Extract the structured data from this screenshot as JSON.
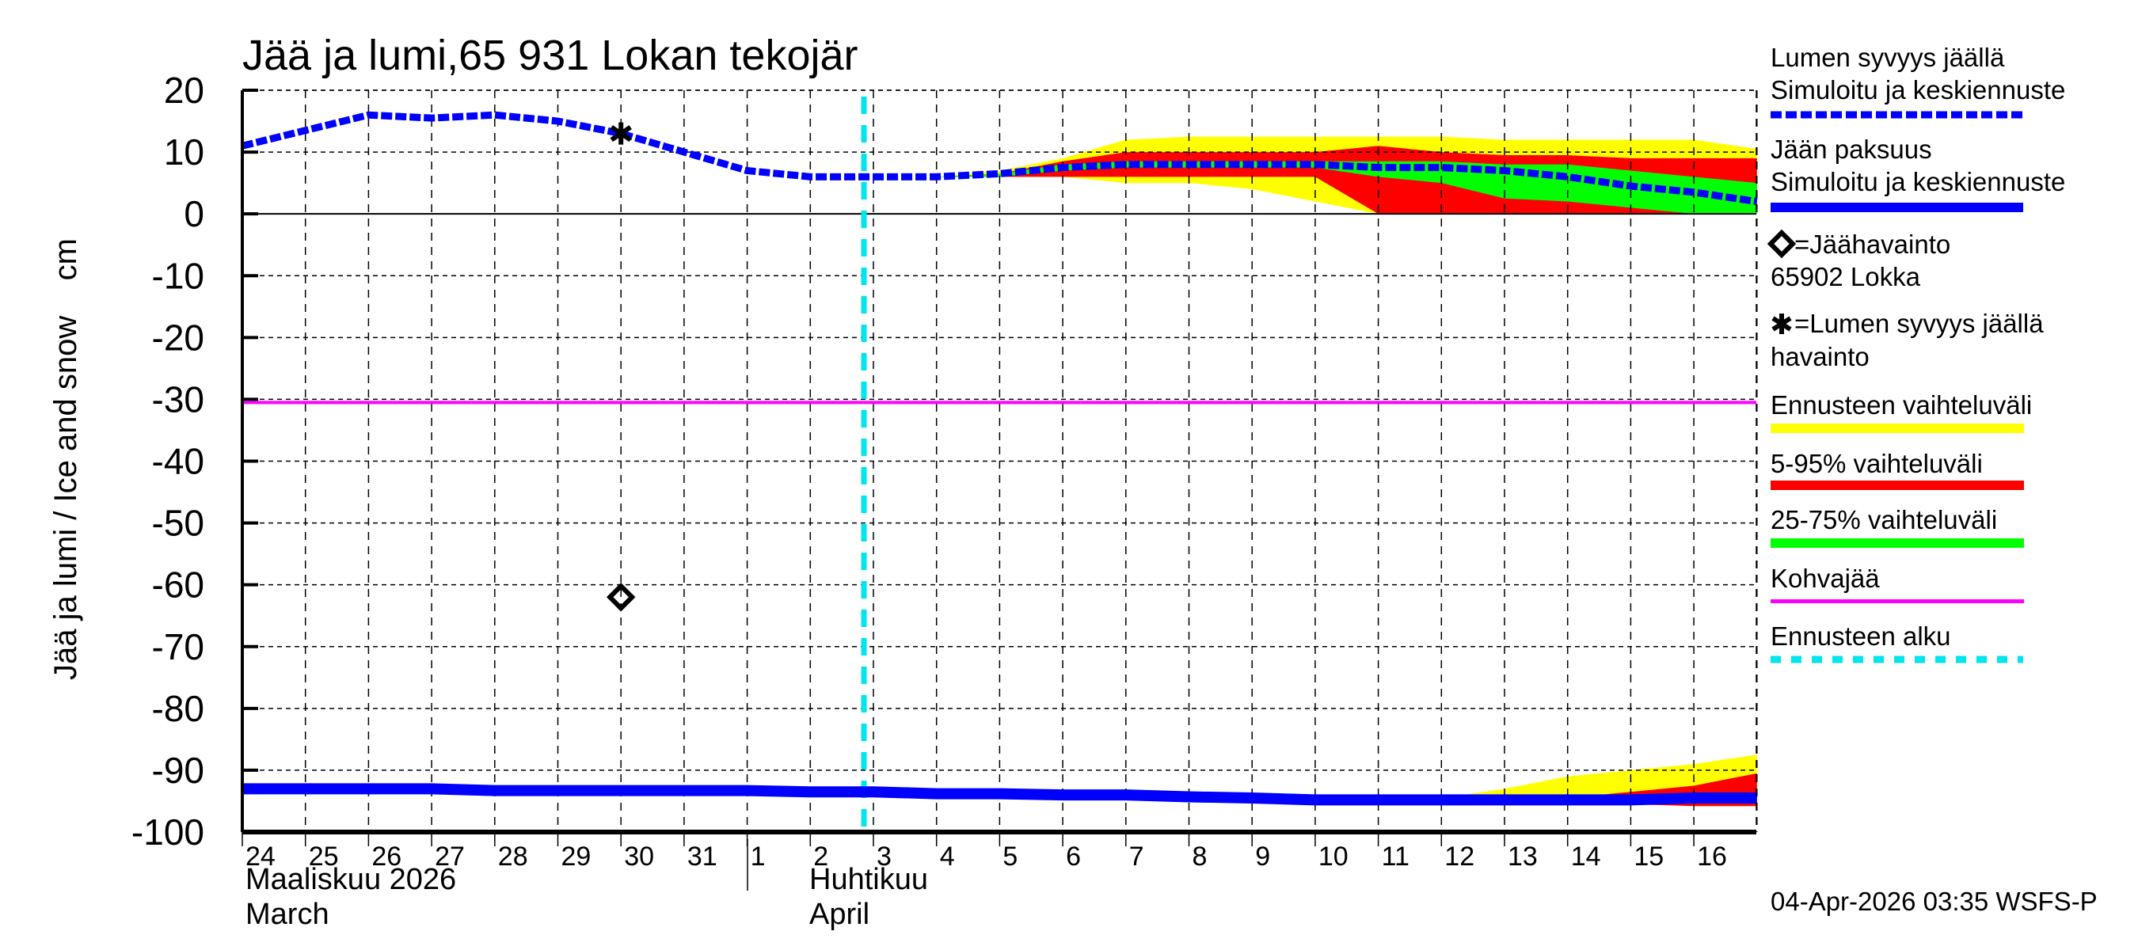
{
  "chart_data": {
    "type": "line",
    "title": "Jää ja lumi,65 931 Lokan tekojär",
    "ylabel": "Jää ja lumi / Ice and snow    cm",
    "xlabel": "",
    "ylim": [
      -100,
      20
    ],
    "yticks": [
      "20",
      "10",
      "0",
      "-10",
      "-20",
      "-30",
      "-40",
      "-50",
      "-60",
      "-70",
      "-80",
      "-90",
      "-100"
    ],
    "x_ticks": [
      "24",
      "25",
      "26",
      "27",
      "28",
      "29",
      "30",
      "31",
      "1",
      "2",
      "3",
      "4",
      "5",
      "6",
      "7",
      "8",
      "9",
      "10",
      "11",
      "12",
      "13",
      "14",
      "15",
      "16"
    ],
    "months": [
      {
        "fi": "Maaliskuu 2026",
        "en": "March"
      },
      {
        "fi": "Huhtikuu",
        "en": "April"
      }
    ],
    "grid": true,
    "legend_position": "right",
    "x_dates": [
      "03-24",
      "03-25",
      "03-26",
      "03-27",
      "03-28",
      "03-29",
      "03-30",
      "03-31",
      "04-01",
      "04-02",
      "04-03",
      "04-04",
      "04-05",
      "04-06",
      "04-07",
      "04-08",
      "04-09",
      "04-10",
      "04-11",
      "04-12",
      "04-13",
      "04-14",
      "04-15",
      "04-16",
      "04-17"
    ],
    "series": [
      {
        "name": "Lumen syvyys jäällä Simuloitu ja keskiennuste",
        "style": "dashed",
        "color": "#0000ff",
        "values": [
          11,
          13.5,
          16,
          15.5,
          16,
          15,
          13,
          10,
          7,
          6,
          6,
          6,
          6.5,
          7.5,
          8,
          8,
          8,
          8,
          7.5,
          7.5,
          7,
          6,
          4.5,
          3.5,
          2
        ]
      },
      {
        "name": "Jään paksuus Simuloitu ja keskiennuste",
        "style": "solid",
        "color": "#0000ff",
        "values": [
          -93,
          -93,
          -93,
          -93,
          -93.3,
          -93.3,
          -93.3,
          -93.3,
          -93.3,
          -93.5,
          -93.5,
          -93.8,
          -93.8,
          -94,
          -94,
          -94.3,
          -94.5,
          -94.8,
          -94.8,
          -94.8,
          -94.8,
          -94.8,
          -94.8,
          -94.5,
          -94.5
        ]
      },
      {
        "name": "Kohvajää",
        "style": "solid",
        "color": "#ff00ff",
        "values": [
          -30.5,
          -30.5
        ]
      }
    ],
    "bands": {
      "snow": {
        "ennusteen_vaihteluvali": {
          "x_start": "04-04",
          "lower": [
            6,
            6,
            6,
            5,
            5,
            4,
            2,
            0,
            0,
            0,
            0,
            0,
            0,
            0
          ],
          "upper": [
            6,
            7,
            9,
            12,
            12.5,
            12.5,
            12.5,
            12.5,
            12.5,
            12,
            12,
            12,
            12,
            10.5
          ]
        },
        "p5_95": {
          "x_start": "04-04",
          "lower": [
            6,
            6,
            6,
            6,
            6,
            6,
            6,
            0,
            0,
            0,
            0,
            0,
            0,
            0
          ],
          "upper": [
            6,
            6.5,
            8.5,
            10,
            10,
            10,
            10,
            11,
            10,
            9.5,
            9.5,
            9,
            9,
            9
          ]
        },
        "p25_75": {
          "x_start": "04-04",
          "lower": [
            6,
            6,
            7,
            7.5,
            7.5,
            7.5,
            7.5,
            6,
            5,
            2.5,
            2,
            1,
            0,
            0
          ],
          "upper": [
            6,
            6.5,
            8,
            8.5,
            8.5,
            8.5,
            8.5,
            8.5,
            8.5,
            8,
            8,
            7,
            6,
            5
          ]
        }
      },
      "ice": {
        "ennusteen_vaihteluvali": {
          "x_start": "04-12",
          "lower": [
            -94.8,
            -95,
            -95.2,
            -95.5,
            -95.5,
            -95.8
          ],
          "upper": [
            -94.5,
            -93,
            -91,
            -90,
            -89,
            -87.5
          ]
        },
        "p5_95": {
          "x_start": "04-13",
          "lower": [
            -95,
            -95,
            -95.5,
            -95.8,
            -95.8
          ],
          "upper": [
            -94.5,
            -94.5,
            -93.5,
            -92.5,
            -90.5
          ]
        }
      }
    },
    "observations": [
      {
        "name": "Jäähavainto 65902 Lokka",
        "marker": "diamond",
        "x": "03-30",
        "y": -62
      },
      {
        "name": "Lumen syvyys jäällä havainto",
        "marker": "asterisk",
        "x": "03-30",
        "y": 13
      }
    ],
    "forecast_start": "04-02 ~21:00"
  },
  "chart": {
    "title": "Jää ja lumi,65 931 Lokan tekojär",
    "ylabel": "Jää ja lumi / Ice and snow    cm",
    "month1_fi": "Maaliskuu 2026",
    "month1_en": "March",
    "month2_fi": "Huhtikuu",
    "month2_en": "April"
  },
  "legend": {
    "snow_line1": "Lumen syvyys jäällä",
    "snow_line2": "Simuloitu ja keskiennuste",
    "ice_line1": "Jään paksuus",
    "ice_line2": "Simuloitu ja keskiennuste",
    "ice_obs_line1": "=Jäähavainto",
    "ice_obs_line2": "65902 Lokka",
    "snow_obs_line1": "=Lumen syvyys jäällä",
    "snow_obs_line2": "havainto",
    "range_all": "Ennusteen vaihteluväli",
    "range_5_95": "5-95% vaihteluväli",
    "range_25_75": "25-75% vaihteluväli",
    "kohvajaa": "Kohvajää",
    "forecast_start": "Ennusteen alku"
  },
  "colors": {
    "snow_line": "#0000ff",
    "ice_line": "#0000ff",
    "range_all": "#ffff00",
    "range_5_95": "#ff0000",
    "range_25_75": "#00ff00",
    "kohvajaa": "#ff00ff",
    "forecast_start": "#00e5ee"
  },
  "footer": {
    "timestamp": "04-Apr-2026 03:35 WSFS-P"
  }
}
